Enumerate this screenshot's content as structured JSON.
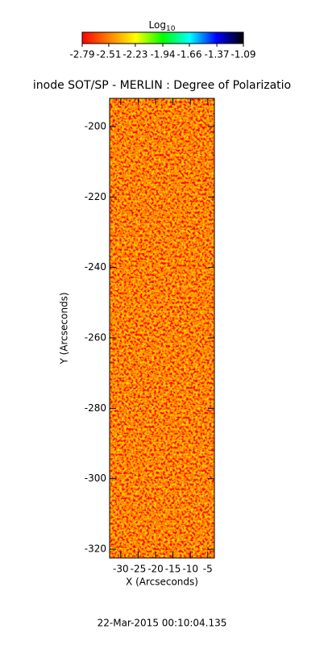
{
  "chart_data": {
    "type": "image",
    "title": "inode SOT/SP - MERLIN : Degree of Polarizatio",
    "xlabel": "X (Arcseconds)",
    "ylabel": "Y (Arcseconds)",
    "xlim": [
      -33.2,
      -3.1
    ],
    "xticks": [
      -30,
      -25,
      -20,
      -15,
      -10,
      -5
    ],
    "ylim": [
      -322.5,
      -192
    ],
    "yticks": [
      -320,
      -300,
      -280,
      -260,
      -240,
      -220,
      -200
    ],
    "date": "22-Mar-2015 00:10:04.135",
    "colorbar": {
      "title": "Log",
      "title_sub": "10",
      "lim": [
        -2.79,
        -1.09
      ],
      "ticks": [
        -2.79,
        -2.51,
        -2.23,
        -1.94,
        -1.66,
        -1.37,
        -1.09
      ],
      "colors": [
        "#ff0000",
        "#ff8000",
        "#ffff00",
        "#00ff00",
        "#00ffff",
        "#0000ff",
        "#000000"
      ]
    }
  }
}
